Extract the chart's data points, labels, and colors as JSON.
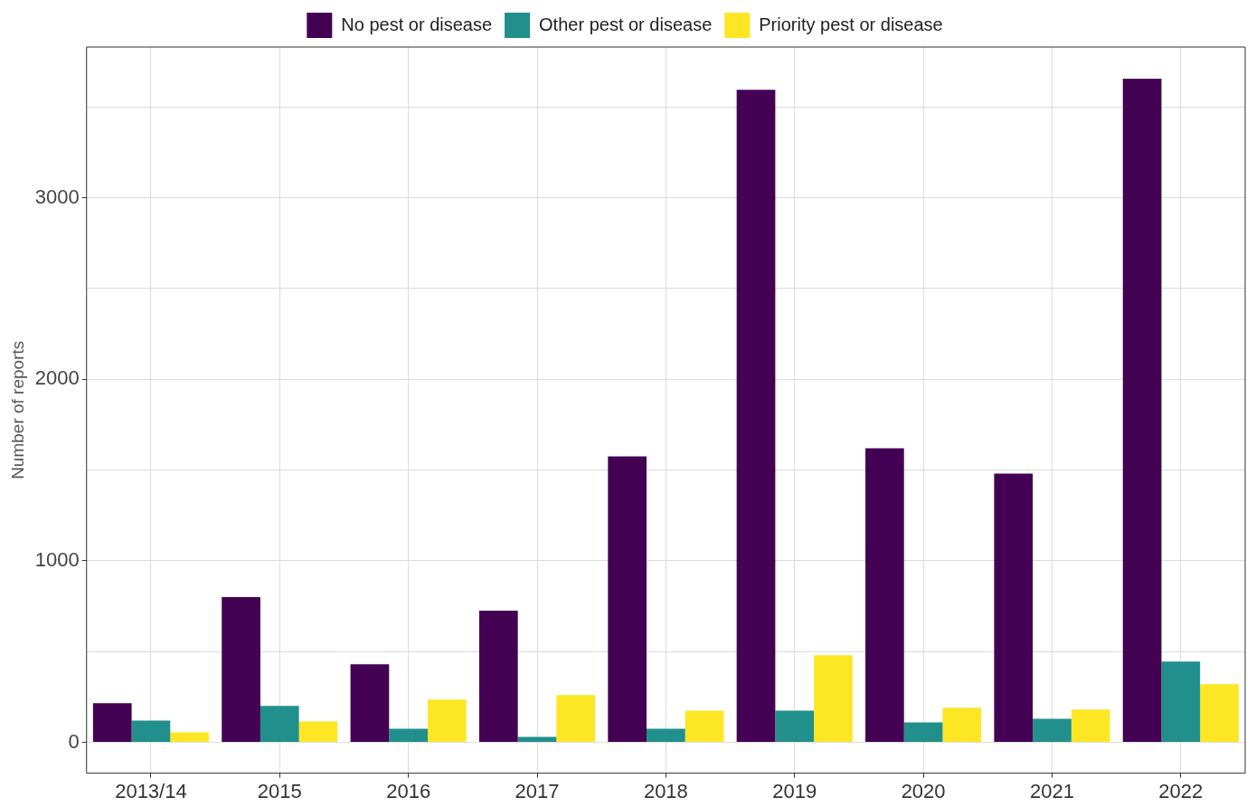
{
  "chart_data": {
    "type": "bar",
    "ylabel": "Number of reports",
    "categories": [
      "2013/14",
      "2015",
      "2016",
      "2017",
      "2018",
      "2019",
      "2020",
      "2021",
      "2022"
    ],
    "series": [
      {
        "name": "No pest or disease",
        "color": "#440154",
        "values": [
          215,
          800,
          430,
          725,
          1575,
          3595,
          1620,
          1480,
          3655
        ]
      },
      {
        "name": "Other pest or disease",
        "color": "#21908c",
        "values": [
          120,
          200,
          75,
          30,
          75,
          175,
          110,
          130,
          445
        ]
      },
      {
        "name": "Priority pest or disease",
        "color": "#fde725",
        "values": [
          55,
          115,
          235,
          260,
          175,
          480,
          190,
          180,
          320
        ]
      }
    ],
    "ylim": [
      -170,
      3830
    ],
    "yticks": [
      0,
      {
        "value": 500,
        "label": null
      },
      1000,
      {
        "value": 1500,
        "label": null
      },
      2000,
      {
        "value": 2500,
        "label": null
      },
      3000,
      {
        "value": 3500,
        "label": null
      }
    ],
    "grid": true,
    "legend": "top"
  }
}
